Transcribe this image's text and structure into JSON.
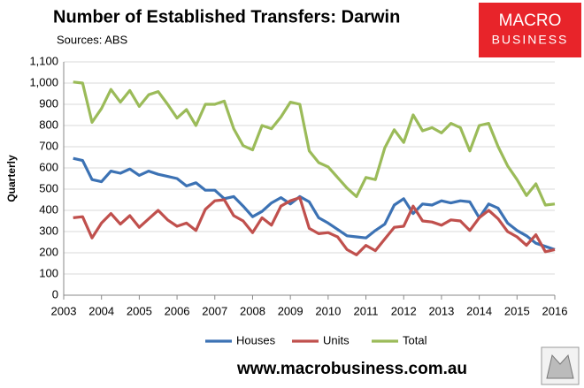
{
  "chart_data": {
    "type": "line",
    "title": "Number of Established Transfers: Darwin",
    "subtitle": "Sources: ABS",
    "y_label": "Quarterly",
    "logo": [
      "MACRO",
      "BUSINESS"
    ],
    "footer": "www.macrobusiness.com.au",
    "x": [
      2003.25,
      2003.5,
      2003.75,
      2004,
      2004.25,
      2004.5,
      2004.75,
      2005,
      2005.25,
      2005.5,
      2005.75,
      2006,
      2006.25,
      2006.5,
      2006.75,
      2007,
      2007.25,
      2007.5,
      2007.75,
      2008,
      2008.25,
      2008.5,
      2008.75,
      2009,
      2009.25,
      2009.5,
      2009.75,
      2010,
      2010.25,
      2010.5,
      2010.75,
      2011,
      2011.25,
      2011.5,
      2011.75,
      2012,
      2012.25,
      2012.5,
      2012.75,
      2013,
      2013.25,
      2013.5,
      2013.75,
      2014,
      2014.25,
      2014.5,
      2014.75,
      2015,
      2015.25,
      2015.5,
      2015.75,
      2016
    ],
    "series": [
      {
        "name": "Houses",
        "color": "#3c72b4",
        "values": [
          645,
          635,
          545,
          535,
          585,
          575,
          595,
          565,
          585,
          570,
          560,
          550,
          515,
          530,
          495,
          495,
          455,
          465,
          420,
          370,
          395,
          435,
          460,
          430,
          465,
          440,
          365,
          340,
          310,
          280,
          275,
          270,
          305,
          335,
          425,
          455,
          385,
          430,
          425,
          445,
          435,
          445,
          440,
          365,
          430,
          410,
          340,
          305,
          280,
          245,
          230,
          215
        ]
      },
      {
        "name": "Units",
        "color": "#c0504d",
        "values": [
          365,
          370,
          270,
          340,
          385,
          335,
          375,
          320,
          360,
          400,
          355,
          325,
          340,
          305,
          405,
          445,
          450,
          375,
          350,
          295,
          365,
          330,
          420,
          445,
          460,
          315,
          290,
          295,
          275,
          215,
          190,
          235,
          210,
          265,
          320,
          325,
          420,
          350,
          345,
          330,
          355,
          350,
          305,
          365,
          400,
          360,
          300,
          275,
          235,
          285,
          205,
          215
        ]
      },
      {
        "name": "Total",
        "color": "#9bbb59",
        "values": [
          1005,
          1000,
          815,
          880,
          970,
          910,
          965,
          890,
          945,
          960,
          900,
          835,
          875,
          800,
          900,
          900,
          915,
          785,
          705,
          685,
          800,
          785,
          840,
          910,
          900,
          680,
          625,
          605,
          555,
          505,
          465,
          555,
          545,
          695,
          780,
          720,
          850,
          775,
          790,
          765,
          810,
          790,
          680,
          800,
          810,
          700,
          610,
          545,
          470,
          525,
          425,
          430
        ]
      }
    ],
    "xlim": [
      2003,
      2016
    ],
    "xticks": [
      2003,
      2004,
      2005,
      2006,
      2007,
      2008,
      2009,
      2010,
      2011,
      2012,
      2013,
      2014,
      2015,
      2016
    ],
    "ylim": [
      0,
      1100
    ],
    "yticks": [
      0,
      100,
      200,
      300,
      400,
      500,
      600,
      700,
      800,
      900,
      {
        "value": 1000,
        "label": "1,000"
      },
      {
        "value": 1100,
        "label": "1,100"
      }
    ],
    "grid": true,
    "legend": "bottom"
  }
}
